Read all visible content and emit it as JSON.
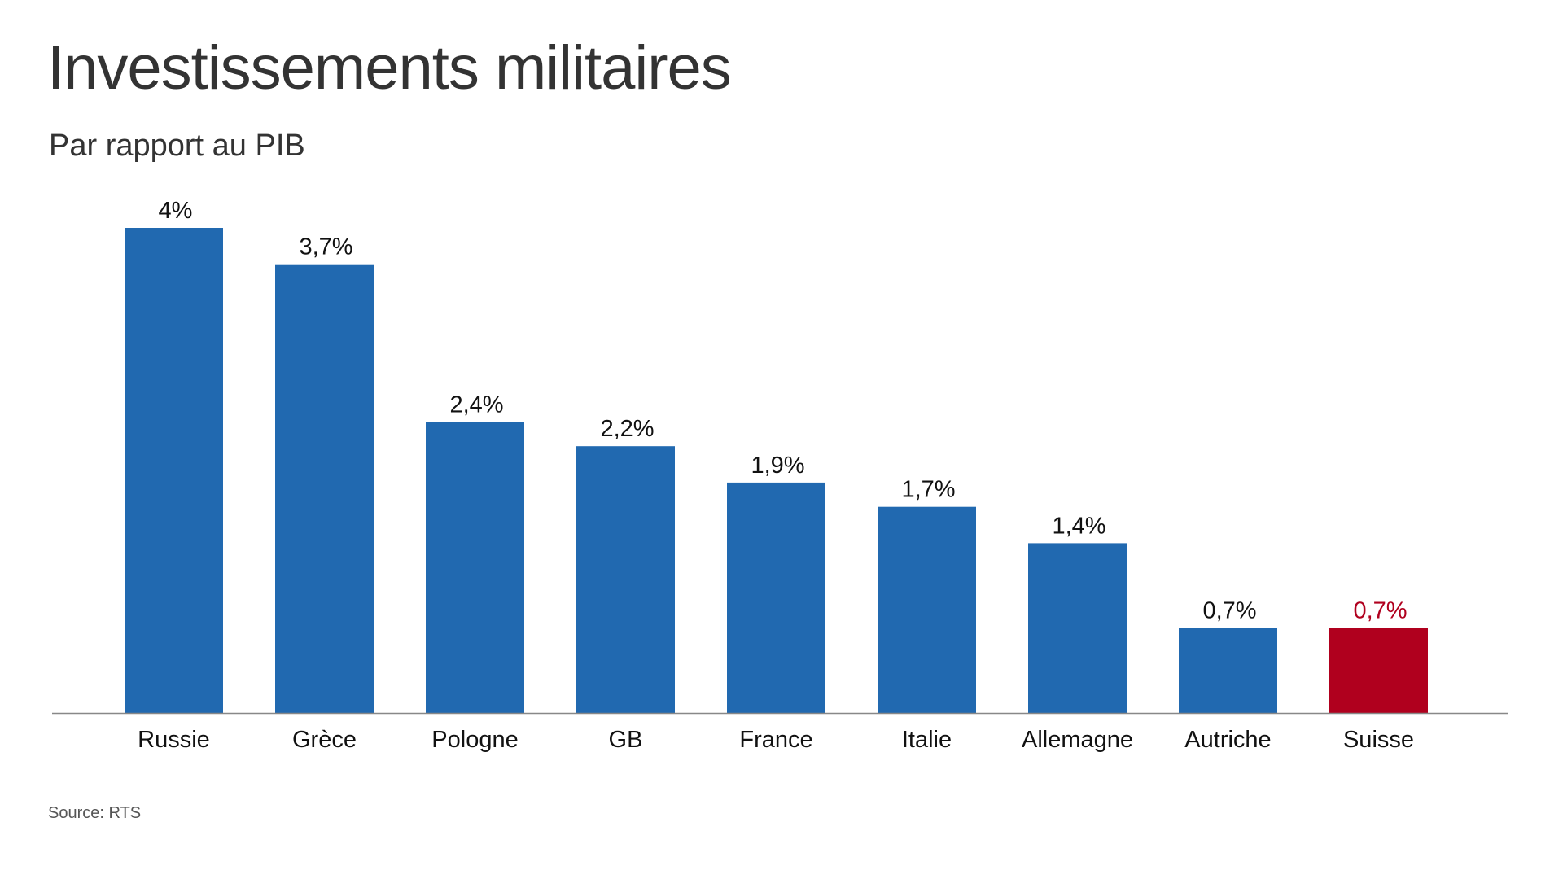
{
  "title": "Investissements militaires",
  "subtitle": "Par rapport au PIB",
  "source": "Source: RTS",
  "colors": {
    "bar": "#2169b0",
    "highlight": "#b0001e",
    "axis": "#888888",
    "text": "#111111"
  },
  "chart_data": {
    "type": "bar",
    "title": "Investissements militaires",
    "subtitle": "Par rapport au PIB",
    "categories": [
      "Russie",
      "Grèce",
      "Pologne",
      "GB",
      "France",
      "Italie",
      "Allemagne",
      "Autriche",
      "Suisse"
    ],
    "values": [
      4,
      3.7,
      2.4,
      2.2,
      1.9,
      1.7,
      1.4,
      0.7,
      0.7
    ],
    "data_labels": [
      "4%",
      "3,7%",
      "2,4%",
      "2,2%",
      "1,9%",
      "1,7%",
      "1,4%",
      "0,7%",
      "0,7%"
    ],
    "highlight": "Suisse",
    "ylim": [
      0,
      4
    ],
    "grid": false,
    "legend": "none"
  }
}
